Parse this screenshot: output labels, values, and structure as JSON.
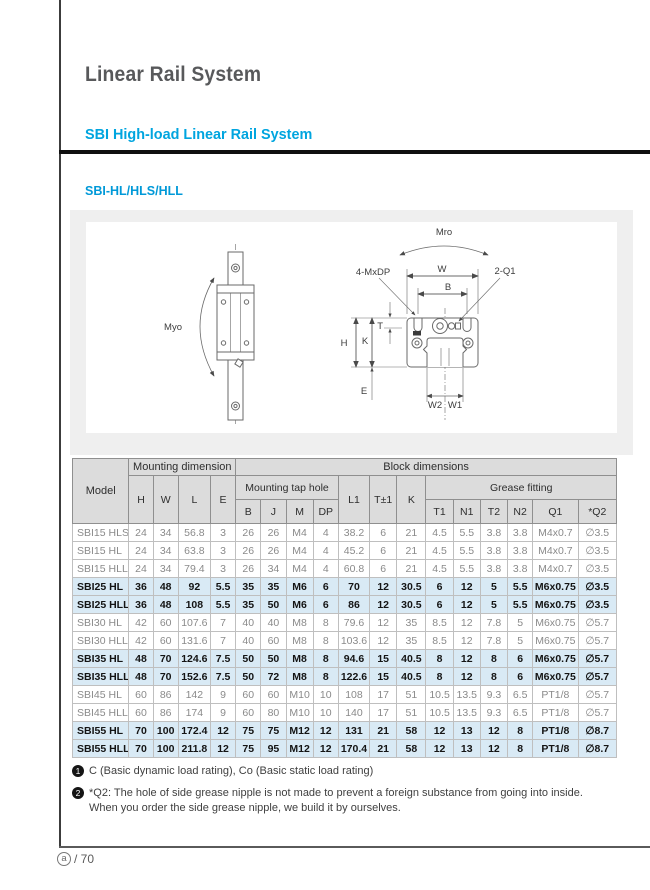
{
  "page": {
    "title": "Linear Rail System",
    "subtitle": "SBI High-load Linear Rail System",
    "section": "SBI-HL/HLS/HLL"
  },
  "colors": {
    "accent_cyan": "#00a5df",
    "section_blue": "#0099d8",
    "highlight_row": "#d9eaf5",
    "header_gray": "#dcdcdc",
    "panel_gray": "#efefef"
  },
  "diagram": {
    "myo": "Myo",
    "mro": "Mro",
    "tap_hole": "4-MxDP",
    "w": "W",
    "q1": "2-Q1",
    "b": "B",
    "t": "T",
    "h": "H",
    "k": "K",
    "e": "E",
    "w2": "W2",
    "w1": "W1"
  },
  "table": {
    "headers": {
      "model": "Model",
      "mounting_dimension": "Mounting dimension",
      "block_dimensions": "Block dimensions",
      "mounting_tap_hole": "Mounting tap hole",
      "grease_fitting": "Grease fitting",
      "h": "H",
      "w": "W",
      "l": "L",
      "e": "E",
      "b": "B",
      "j": "J",
      "m": "M",
      "dp": "DP",
      "l1": "L1",
      "t_tol": "T±1",
      "k": "K",
      "t1": "T1",
      "n1": "N1",
      "t2": "T2",
      "n2": "N2",
      "q1": "Q1",
      "q2": "*Q2"
    },
    "rows": [
      {
        "cells": [
          "SBI15 HLS",
          "24",
          "34",
          "56.8",
          "3",
          "26",
          "26",
          "M4",
          "4",
          "38.2",
          "6",
          "21",
          "4.5",
          "5.5",
          "3.8",
          "3.8",
          "M4x0.7",
          "∅3.5"
        ],
        "highlight": false
      },
      {
        "cells": [
          "SBI15 HL",
          "24",
          "34",
          "63.8",
          "3",
          "26",
          "26",
          "M4",
          "4",
          "45.2",
          "6",
          "21",
          "4.5",
          "5.5",
          "3.8",
          "3.8",
          "M4x0.7",
          "∅3.5"
        ],
        "highlight": false
      },
      {
        "cells": [
          "SBI15 HLL",
          "24",
          "34",
          "79.4",
          "3",
          "26",
          "34",
          "M4",
          "4",
          "60.8",
          "6",
          "21",
          "4.5",
          "5.5",
          "3.8",
          "3.8",
          "M4x0.7",
          "∅3.5"
        ],
        "highlight": false
      },
      {
        "cells": [
          "SBI25 HL",
          "36",
          "48",
          "92",
          "5.5",
          "35",
          "35",
          "M6",
          "6",
          "70",
          "12",
          "30.5",
          "6",
          "12",
          "5",
          "5.5",
          "M6x0.75",
          "∅3.5"
        ],
        "highlight": true
      },
      {
        "cells": [
          "SBI25 HLL",
          "36",
          "48",
          "108",
          "5.5",
          "35",
          "50",
          "M6",
          "6",
          "86",
          "12",
          "30.5",
          "6",
          "12",
          "5",
          "5.5",
          "M6x0.75",
          "∅3.5"
        ],
        "highlight": true
      },
      {
        "cells": [
          "SBI30 HL",
          "42",
          "60",
          "107.6",
          "7",
          "40",
          "40",
          "M8",
          "8",
          "79.6",
          "12",
          "35",
          "8.5",
          "12",
          "7.8",
          "5",
          "M6x0.75",
          "∅5.7"
        ],
        "highlight": false
      },
      {
        "cells": [
          "SBI30 HLL",
          "42",
          "60",
          "131.6",
          "7",
          "40",
          "60",
          "M8",
          "8",
          "103.6",
          "12",
          "35",
          "8.5",
          "12",
          "7.8",
          "5",
          "M6x0.75",
          "∅5.7"
        ],
        "highlight": false
      },
      {
        "cells": [
          "SBI35 HL",
          "48",
          "70",
          "124.6",
          "7.5",
          "50",
          "50",
          "M8",
          "8",
          "94.6",
          "15",
          "40.5",
          "8",
          "12",
          "8",
          "6",
          "M6x0.75",
          "∅5.7"
        ],
        "highlight": true
      },
      {
        "cells": [
          "SBI35 HLL",
          "48",
          "70",
          "152.6",
          "7.5",
          "50",
          "72",
          "M8",
          "8",
          "122.6",
          "15",
          "40.5",
          "8",
          "12",
          "8",
          "6",
          "M6x0.75",
          "∅5.7"
        ],
        "highlight": true
      },
      {
        "cells": [
          "SBI45 HL",
          "60",
          "86",
          "142",
          "9",
          "60",
          "60",
          "M10",
          "10",
          "108",
          "17",
          "51",
          "10.5",
          "13.5",
          "9.3",
          "6.5",
          "PT1/8",
          "∅5.7"
        ],
        "highlight": false
      },
      {
        "cells": [
          "SBI45 HLL",
          "60",
          "86",
          "174",
          "9",
          "60",
          "80",
          "M10",
          "10",
          "140",
          "17",
          "51",
          "10.5",
          "13.5",
          "9.3",
          "6.5",
          "PT1/8",
          "∅5.7"
        ],
        "highlight": false
      },
      {
        "cells": [
          "SBI55 HL",
          "70",
          "100",
          "172.4",
          "12",
          "75",
          "75",
          "M12",
          "12",
          "131",
          "21",
          "58",
          "12",
          "13",
          "12",
          "8",
          "PT1/8",
          "∅8.7"
        ],
        "highlight": true
      },
      {
        "cells": [
          "SBI55 HLL",
          "70",
          "100",
          "211.8",
          "12",
          "75",
          "95",
          "M12",
          "12",
          "170.4",
          "21",
          "58",
          "12",
          "13",
          "12",
          "8",
          "PT1/8",
          "∅8.7"
        ],
        "highlight": true
      }
    ]
  },
  "notes": {
    "note1": {
      "marker": "1",
      "text": "C (Basic dynamic load rating), Co (Basic static load rating)"
    },
    "note2": {
      "marker": "2",
      "line1": "*Q2: The hole of side grease nipple is not made to prevent a foreign substance from going into inside.",
      "line2": "When you order the side grease nipple, we build it by ourselves."
    }
  },
  "footer": {
    "logo_letter": "a",
    "page_label": "/ 70"
  }
}
